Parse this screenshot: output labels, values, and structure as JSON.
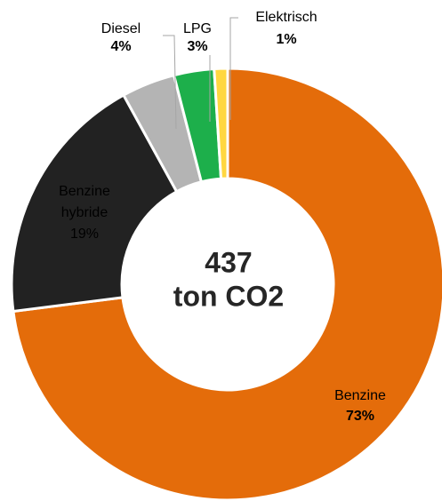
{
  "chart_data": {
    "type": "donut",
    "categories": [
      "Benzine",
      "Benzine hybride",
      "Diesel",
      "LPG",
      "Elektrisch"
    ],
    "values": [
      73,
      19,
      4,
      3,
      1
    ],
    "value_labels": [
      "73%",
      "19%",
      "4%",
      "3%",
      "1%"
    ],
    "colors": [
      "#e46c0a",
      "#222222",
      "#b4b4b4",
      "#1daf4b",
      "#ffd740"
    ],
    "center_text": [
      "437",
      "ton CO2"
    ]
  }
}
